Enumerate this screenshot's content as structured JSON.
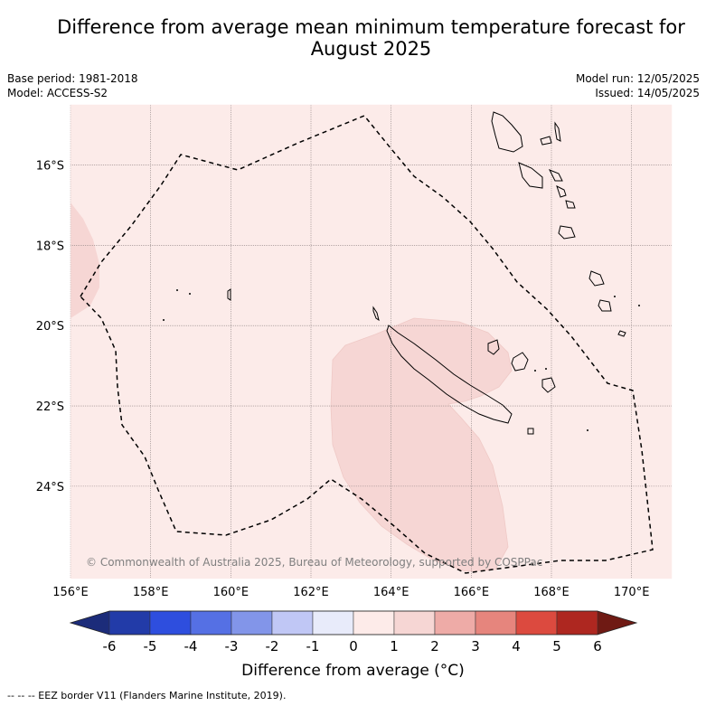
{
  "title_line1": "Difference from average mean minimum temperature forecast for",
  "title_line2": "August 2025",
  "meta": {
    "base_period": "Base period: 1981-2018",
    "model": "Model: ACCESS-S2",
    "model_run": "Model run: 12/05/2025",
    "issued": "Issued: 14/05/2025"
  },
  "map": {
    "lon_range": [
      156,
      171
    ],
    "lat_range": [
      -14.5,
      -26.3
    ],
    "lat_ticks": [
      {
        "value": -16,
        "label": "16°S"
      },
      {
        "value": -18,
        "label": "18°S"
      },
      {
        "value": -20,
        "label": "20°S"
      },
      {
        "value": -22,
        "label": "22°S"
      },
      {
        "value": -24,
        "label": "24°S"
      }
    ],
    "lon_ticks": [
      {
        "value": 156,
        "label": "156°E"
      },
      {
        "value": 158,
        "label": "158°E"
      },
      {
        "value": 160,
        "label": "160°E"
      },
      {
        "value": 162,
        "label": "162°E"
      },
      {
        "value": 164,
        "label": "164°E"
      },
      {
        "value": 166,
        "label": "166°E"
      },
      {
        "value": 168,
        "label": "168°E"
      },
      {
        "value": 170,
        "label": "170°E"
      }
    ],
    "background_class_color": "#fcebe9",
    "warm_class_color": "#f6d6d4",
    "copyright": "© Commonwealth of Australia 2025, Bureau of Meteorology, supported by COSPPac"
  },
  "colorbar": {
    "title": "Difference from average (°C)",
    "tick_labels": [
      "-6",
      "-5",
      "-4",
      "-3",
      "-2",
      "-1",
      "0",
      "1",
      "2",
      "3",
      "4",
      "5",
      "6"
    ],
    "colors": [
      "#223ba8",
      "#2e4ede",
      "#5570e4",
      "#8295e9",
      "#c0c7f5",
      "#e8ebfa",
      "#fdebe9",
      "#f6d6d4",
      "#eeaba7",
      "#e6857d",
      "#dc4a3f",
      "#ae2720"
    ],
    "under_color": "#1c2c7a",
    "over_color": "#6f1a14"
  },
  "footer": "--  --  -- EEZ border V11 (Flanders Marine Institute, 2019)."
}
